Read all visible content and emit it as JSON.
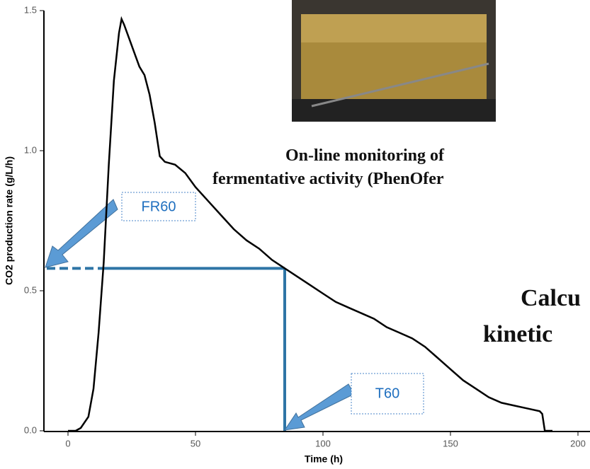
{
  "chart_data": {
    "type": "line",
    "xlabel": "Time (h)",
    "ylabel": "CO2 production rate (g/L/h)",
    "x": [
      0,
      3,
      5,
      8,
      10,
      12,
      14,
      16,
      18,
      20,
      21,
      22,
      24,
      26,
      28,
      30,
      32,
      34,
      36,
      38,
      42,
      46,
      50,
      55,
      60,
      65,
      70,
      75,
      80,
      85,
      90,
      95,
      100,
      105,
      110,
      115,
      120,
      125,
      130,
      135,
      140,
      145,
      150,
      155,
      160,
      165,
      170,
      175,
      180,
      185,
      186,
      187,
      190
    ],
    "series": [
      {
        "color": "#000000",
        "values": [
          0,
          0,
          0.01,
          0.05,
          0.15,
          0.35,
          0.6,
          0.95,
          1.25,
          1.42,
          1.47,
          1.45,
          1.4,
          1.35,
          1.3,
          1.27,
          1.2,
          1.1,
          0.98,
          0.96,
          0.95,
          0.92,
          0.87,
          0.82,
          0.77,
          0.72,
          0.68,
          0.65,
          0.61,
          0.58,
          0.55,
          0.52,
          0.49,
          0.46,
          0.44,
          0.42,
          0.4,
          0.37,
          0.35,
          0.33,
          0.3,
          0.26,
          0.22,
          0.18,
          0.15,
          0.12,
          0.1,
          0.09,
          0.08,
          0.07,
          0.06,
          0,
          0
        ]
      }
    ],
    "xlim": [
      -10,
      200
    ],
    "xticks": [
      0,
      50,
      100,
      150,
      200
    ],
    "ylim": [
      0,
      1.5
    ],
    "yticks": [
      {
        "value": 0,
        "label": "0.0"
      },
      0.5,
      {
        "value": 1,
        "label": "1.0"
      },
      1.5
    ],
    "reference": {
      "color": "#2e75a6",
      "x": 85,
      "y": 0.58
    },
    "annotations": [
      {
        "label": "FR60"
      },
      {
        "label": "T60"
      }
    ],
    "texts": [
      "On-line monitoring of",
      "fermentative activity (PhenOfer",
      "Calcu",
      "kinetic"
    ]
  }
}
